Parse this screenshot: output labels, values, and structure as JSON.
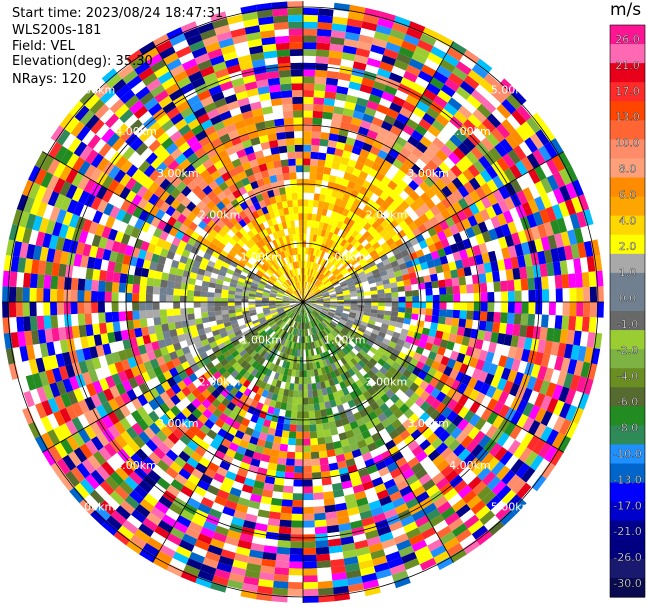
{
  "header": {
    "start_time": "Start time: 2023/08/24 18:47:31",
    "instrument": "WLS200s-181",
    "field": "Field: VEL",
    "elevation": "Elevation(deg): 35.30",
    "nrays": "NRays: 120"
  },
  "chart_data": {
    "type": "heatmap",
    "subtype": "ppi-polar",
    "field": "VEL",
    "units": "m/s",
    "n_rays": 120,
    "range_rings_km": [
      1,
      2,
      3,
      4,
      5
    ],
    "ring_labels": [
      "1.00km",
      "2.00km",
      "3.00km",
      "4.00km",
      "5.00km"
    ],
    "spokes_deg": [
      0,
      30,
      60,
      90,
      120,
      150,
      180,
      210,
      240,
      270,
      300,
      330
    ],
    "max_range_km": 5.1,
    "colorbar": {
      "title": "m/s",
      "tick_labels": [
        "26.0",
        "21.0",
        "17.0",
        "13.0",
        "10.0",
        "8.0",
        "6.0",
        "4.0",
        "2.0",
        "1.0",
        "0.0",
        "-1.0",
        "-2.0",
        "-4.0",
        "-6.0",
        "-8.0",
        "-10.0",
        "-13.0",
        "-17.0",
        "-21.0",
        "-26.0",
        "-30.0"
      ],
      "colors": [
        "#ff1493",
        "#ff69b4",
        "#e8001a",
        "#ff2a2a",
        "#ff4500",
        "#ff6633",
        "#ff8c69",
        "#ffa07a",
        "#ff8c00",
        "#ffa500",
        "#ffd700",
        "#ffff00",
        "#a9a9a9",
        "#708090",
        "#708090",
        "#696969",
        "#9acd32",
        "#7cb342",
        "#6b8e23",
        "#556b2f",
        "#228b22",
        "#2e8b57",
        "#1e90ff",
        "#0066cc",
        "#0000ff",
        "#0000cd",
        "#00008b",
        "#000080",
        "#191970",
        "#0a0a50"
      ]
    },
    "regions": [
      {
        "description": "near-range northern sector",
        "velocity_range": [
          2,
          6
        ]
      },
      {
        "description": "near-range eastern/western sector",
        "velocity_range": [
          -1,
          1
        ]
      },
      {
        "description": "near-range southern sector",
        "velocity_range": [
          -8,
          -2
        ]
      },
      {
        "description": "far range (noise)",
        "velocity_range": [
          -30,
          26
        ]
      }
    ]
  }
}
